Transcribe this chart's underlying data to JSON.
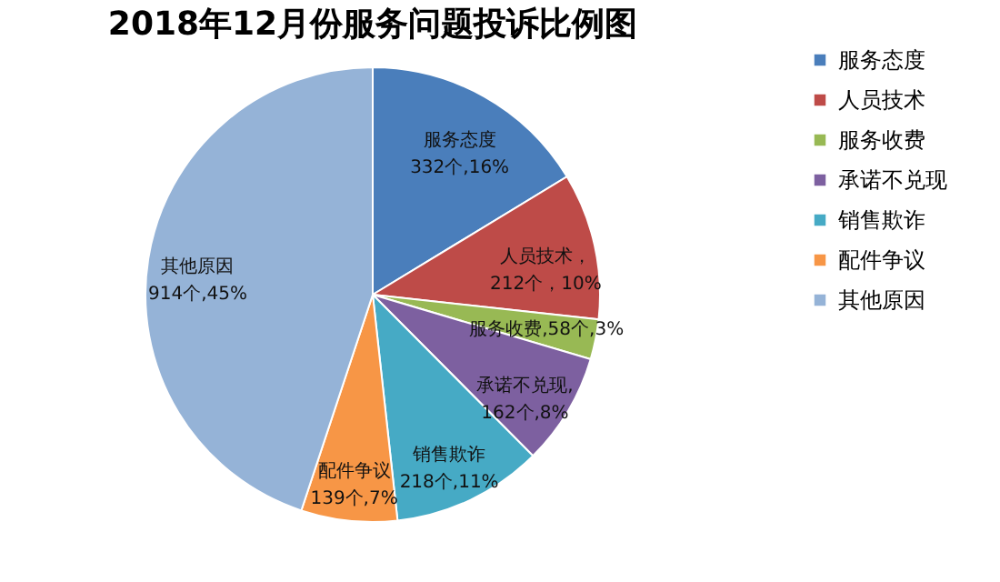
{
  "chart_data": {
    "type": "pie",
    "title": "2018年12月份服务问题投诉比例图",
    "categories": [
      "服务态度",
      "人员技术",
      "服务收费",
      "承诺不兑现",
      "销售欺诈",
      "配件争议",
      "其他原因"
    ],
    "values": [
      332,
      212,
      58,
      162,
      218,
      139,
      914
    ],
    "colors": [
      "#4a7ebb",
      "#be4b48",
      "#98b954",
      "#7d60a0",
      "#46aac5",
      "#f79646",
      "#95b3d7"
    ],
    "value_labels": [
      "服务态度\n332个,16%",
      "人员技术，\n212个，10%",
      "服务收费,58个,3%",
      "承诺不兑现,\n162个,8%",
      "销售欺诈\n218个,11%",
      "配件争议\n139个,7%",
      "其他原因\n914个,45%"
    ],
    "legend": "right"
  }
}
